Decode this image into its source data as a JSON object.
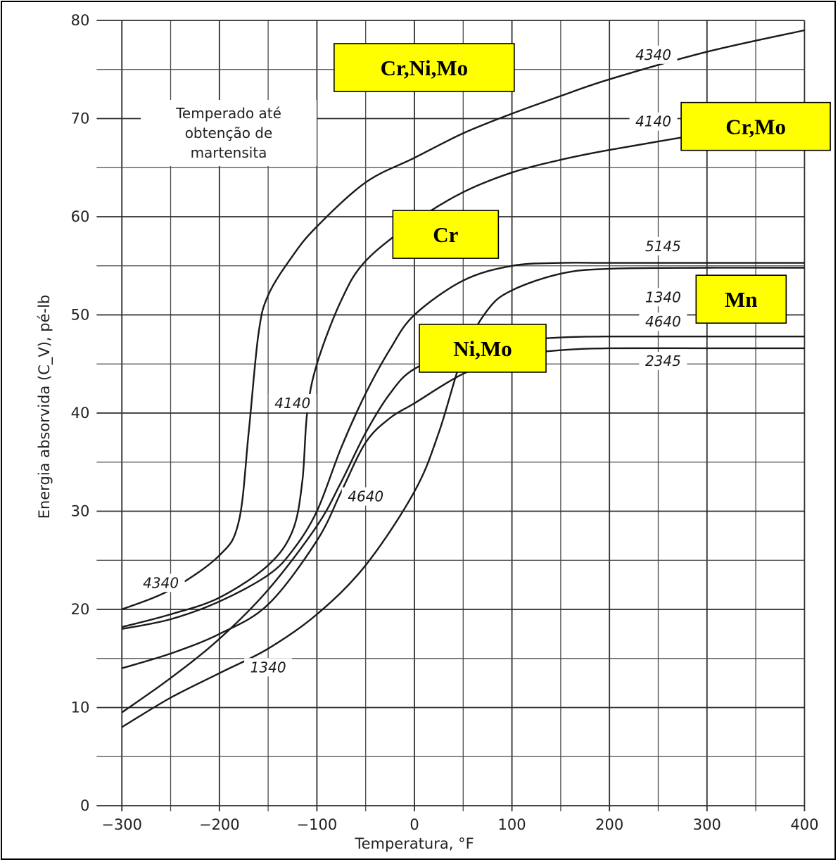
{
  "chart_data": {
    "type": "line",
    "xlabel": "Temperatura, °F",
    "ylabel": "Energia absorvida (C_V), pé-lb",
    "xlim": [
      -310,
      400
    ],
    "ylim": [
      0,
      80
    ],
    "x_ticks": [
      -300,
      -200,
      -100,
      0,
      100,
      200,
      300,
      400
    ],
    "x_tick_labels": [
      "−300",
      "−200",
      "−100",
      "0",
      "100",
      "200",
      "300",
      "400"
    ],
    "y_ticks": [
      0,
      10,
      20,
      30,
      40,
      50,
      60,
      70,
      80
    ],
    "y_tick_labels": [
      "0",
      "10",
      "20",
      "30",
      "40",
      "50",
      "60",
      "70",
      "80"
    ],
    "grid": true,
    "annotation": [
      "Temperado até",
      "obtenção de",
      "martensita"
    ],
    "series": [
      {
        "name": "4340",
        "x": [
          -300,
          -250,
          -200,
          -180,
          -170,
          -160,
          -150,
          -125,
          -100,
          -50,
          0,
          50,
          100,
          150,
          200,
          300,
          400
        ],
        "y": [
          20,
          22,
          25.5,
          29,
          38,
          48,
          52,
          56,
          59,
          63.5,
          66,
          68.5,
          70.5,
          72.3,
          74,
          76.8,
          79
        ]
      },
      {
        "name": "4140",
        "x": [
          -300,
          -250,
          -200,
          -150,
          -125,
          -115,
          -110,
          -100,
          -75,
          -50,
          0,
          50,
          100,
          150,
          200,
          300,
          400
        ],
        "y": [
          18.2,
          19.5,
          21.2,
          24.5,
          28,
          33,
          40,
          45,
          51.5,
          55.5,
          59.5,
          62.5,
          64.5,
          65.8,
          66.8,
          68.5,
          70
        ]
      },
      {
        "name": "5145",
        "x": [
          -300,
          -250,
          -200,
          -150,
          -125,
          -100,
          -75,
          -50,
          -25,
          0,
          50,
          100,
          150,
          200,
          300,
          400
        ],
        "y": [
          18,
          19,
          20.8,
          23.5,
          26,
          30,
          36.5,
          42,
          46.5,
          50,
          53.5,
          55,
          55.3,
          55.3,
          55.3,
          55.3
        ]
      },
      {
        "name": "1340",
        "x": [
          -300,
          -250,
          -200,
          -150,
          -100,
          -50,
          0,
          25,
          50,
          75,
          100,
          150,
          200,
          300,
          400
        ],
        "y": [
          8,
          11,
          13.5,
          16,
          19.5,
          24.5,
          32,
          38,
          46,
          50.5,
          52.5,
          54.2,
          54.7,
          54.8,
          54.8
        ]
      },
      {
        "name": "4640",
        "x": [
          -300,
          -250,
          -200,
          -150,
          -100,
          -75,
          -50,
          -25,
          0,
          50,
          100,
          150,
          200,
          300,
          400
        ],
        "y": [
          9.5,
          13,
          17,
          22,
          28.5,
          33,
          38,
          42,
          44.5,
          46.5,
          47.3,
          47.7,
          47.8,
          47.8,
          47.8
        ]
      },
      {
        "name": "2345",
        "x": [
          -300,
          -250,
          -200,
          -150,
          -100,
          -75,
          -50,
          -25,
          0,
          50,
          100,
          150,
          200,
          300,
          400
        ],
        "y": [
          14,
          15.5,
          17.5,
          20.5,
          27,
          32,
          37,
          39.5,
          41,
          44,
          45.8,
          46.4,
          46.6,
          46.6,
          46.6
        ]
      }
    ],
    "curve_labels": [
      {
        "text": "4340",
        "x": 245,
        "y": 76
      },
      {
        "text": "4140",
        "x": 245,
        "y": 69.2
      },
      {
        "text": "5145",
        "x": 255,
        "y": 56.5
      },
      {
        "text": "1340",
        "x": 255,
        "y": 51.3
      },
      {
        "text": "4640",
        "x": 255,
        "y": 48.8
      },
      {
        "text": "2345",
        "x": 255,
        "y": 44.8
      },
      {
        "text": "4340",
        "x": -260,
        "y": 22.2
      },
      {
        "text": "4140",
        "x": -125,
        "y": 40.5
      },
      {
        "text": "4640",
        "x": -50,
        "y": 31
      },
      {
        "text": "1340",
        "x": -150,
        "y": 13.6
      }
    ],
    "element_tags": [
      {
        "text": "Cr,Ni,Mo",
        "x": 10,
        "y": 75.2
      },
      {
        "text": "Cr,Mo",
        "x": 350,
        "y": 69.2
      },
      {
        "text": "Cr",
        "x": 32,
        "y": 58.2
      },
      {
        "text": "Mn",
        "x": 335,
        "y": 51.6
      },
      {
        "text": "Ni,Mo",
        "x": 70,
        "y": 46.6
      }
    ]
  }
}
